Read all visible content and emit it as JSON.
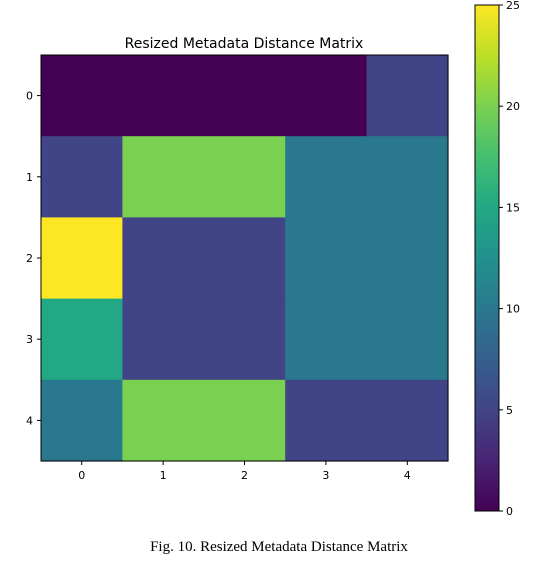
{
  "chart_data": {
    "type": "heatmap",
    "title": "Resized Metadata Distance Matrix",
    "xlabel": "",
    "ylabel": "",
    "x_ticks": [
      "0",
      "1",
      "2",
      "3",
      "4"
    ],
    "y_ticks": [
      "0",
      "1",
      "2",
      "3",
      "4"
    ],
    "columns": [
      0,
      1,
      2,
      3,
      4
    ],
    "rows": [
      0,
      1,
      2,
      3,
      4
    ],
    "values": [
      [
        0,
        0,
        0,
        0,
        5
      ],
      [
        5,
        20,
        20,
        10,
        10
      ],
      [
        25,
        5,
        5,
        10,
        10
      ],
      [
        15,
        5,
        5,
        10,
        10
      ],
      [
        10,
        20,
        20,
        5,
        5
      ]
    ],
    "colormap": "viridis",
    "colorbar": {
      "range": [
        0,
        25
      ],
      "ticks": [
        0,
        5,
        10,
        15,
        20,
        25
      ],
      "tick_labels": [
        "0",
        "5",
        "10",
        "15",
        "20",
        "25"
      ]
    },
    "grid": false
  },
  "caption": "Fig. 10.  Resized Metadata Distance Matrix"
}
